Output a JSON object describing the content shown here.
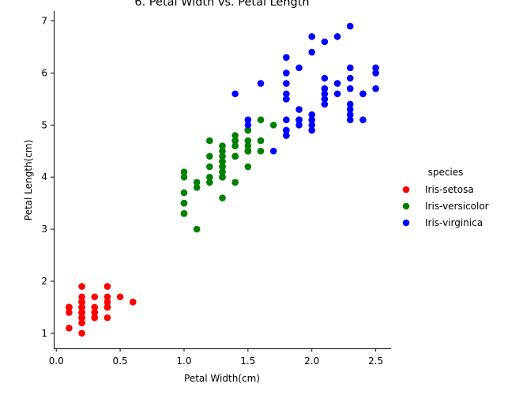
{
  "chart_data": {
    "type": "scatter",
    "title": "6. Petal Width vs. Petal Length",
    "xlabel": "Petal Width(cm)",
    "ylabel": "Petal Length(cm)",
    "xlim": [
      -0.02,
      2.62
    ],
    "ylim": [
      0.71,
      7.19
    ],
    "xticks": [
      0.0,
      0.5,
      1.0,
      1.5,
      2.0,
      2.5
    ],
    "xtick_labels": [
      "0.0",
      "0.5",
      "1.0",
      "1.5",
      "2.0",
      "2.5"
    ],
    "yticks": [
      1,
      2,
      3,
      4,
      5,
      6,
      7
    ],
    "ytick_labels": [
      "1",
      "2",
      "3",
      "4",
      "5",
      "6",
      "7"
    ],
    "grid": false,
    "legend": {
      "title": "species",
      "placement": "right"
    },
    "series": [
      {
        "name": "Iris-setosa",
        "color": "#ff0000",
        "points": [
          [
            0.2,
            1.4
          ],
          [
            0.2,
            1.4
          ],
          [
            0.2,
            1.3
          ],
          [
            0.2,
            1.5
          ],
          [
            0.2,
            1.4
          ],
          [
            0.4,
            1.7
          ],
          [
            0.3,
            1.4
          ],
          [
            0.2,
            1.5
          ],
          [
            0.2,
            1.4
          ],
          [
            0.1,
            1.5
          ],
          [
            0.2,
            1.5
          ],
          [
            0.2,
            1.6
          ],
          [
            0.1,
            1.4
          ],
          [
            0.1,
            1.1
          ],
          [
            0.2,
            1.2
          ],
          [
            0.4,
            1.5
          ],
          [
            0.4,
            1.3
          ],
          [
            0.3,
            1.4
          ],
          [
            0.3,
            1.7
          ],
          [
            0.3,
            1.5
          ],
          [
            0.2,
            1.7
          ],
          [
            0.4,
            1.5
          ],
          [
            0.2,
            1.0
          ],
          [
            0.5,
            1.7
          ],
          [
            0.2,
            1.9
          ],
          [
            0.2,
            1.6
          ],
          [
            0.4,
            1.6
          ],
          [
            0.2,
            1.5
          ],
          [
            0.2,
            1.4
          ],
          [
            0.2,
            1.6
          ],
          [
            0.2,
            1.6
          ],
          [
            0.4,
            1.5
          ],
          [
            0.1,
            1.5
          ],
          [
            0.2,
            1.4
          ],
          [
            0.1,
            1.5
          ],
          [
            0.2,
            1.2
          ],
          [
            0.2,
            1.3
          ],
          [
            0.1,
            1.5
          ],
          [
            0.2,
            1.3
          ],
          [
            0.2,
            1.5
          ],
          [
            0.3,
            1.3
          ],
          [
            0.3,
            1.3
          ],
          [
            0.2,
            1.3
          ],
          [
            0.6,
            1.6
          ],
          [
            0.4,
            1.9
          ],
          [
            0.3,
            1.4
          ],
          [
            0.2,
            1.6
          ],
          [
            0.2,
            1.4
          ],
          [
            0.2,
            1.5
          ],
          [
            0.2,
            1.4
          ]
        ]
      },
      {
        "name": "Iris-versicolor",
        "color": "#008000",
        "points": [
          [
            1.4,
            4.7
          ],
          [
            1.5,
            4.5
          ],
          [
            1.5,
            4.9
          ],
          [
            1.3,
            4.0
          ],
          [
            1.5,
            4.6
          ],
          [
            1.3,
            4.5
          ],
          [
            1.6,
            4.7
          ],
          [
            1.0,
            3.3
          ],
          [
            1.3,
            4.6
          ],
          [
            1.4,
            3.9
          ],
          [
            1.0,
            3.5
          ],
          [
            1.5,
            4.2
          ],
          [
            1.0,
            4.0
          ],
          [
            1.4,
            4.7
          ],
          [
            1.3,
            3.6
          ],
          [
            1.4,
            4.4
          ],
          [
            1.5,
            4.5
          ],
          [
            1.0,
            4.1
          ],
          [
            1.5,
            4.5
          ],
          [
            1.1,
            3.9
          ],
          [
            1.8,
            4.8
          ],
          [
            1.3,
            4.0
          ],
          [
            1.5,
            4.9
          ],
          [
            1.2,
            4.7
          ],
          [
            1.3,
            4.3
          ],
          [
            1.4,
            4.4
          ],
          [
            1.4,
            4.8
          ],
          [
            1.7,
            5.0
          ],
          [
            1.5,
            4.5
          ],
          [
            1.0,
            3.5
          ],
          [
            1.1,
            3.8
          ],
          [
            1.0,
            3.7
          ],
          [
            1.2,
            3.9
          ],
          [
            1.6,
            5.1
          ],
          [
            1.5,
            4.5
          ],
          [
            1.6,
            4.5
          ],
          [
            1.5,
            4.7
          ],
          [
            1.3,
            4.4
          ],
          [
            1.3,
            4.1
          ],
          [
            1.3,
            4.0
          ],
          [
            1.2,
            4.4
          ],
          [
            1.4,
            4.6
          ],
          [
            1.2,
            4.0
          ],
          [
            1.0,
            3.3
          ],
          [
            1.3,
            4.2
          ],
          [
            1.2,
            4.2
          ],
          [
            1.3,
            4.2
          ],
          [
            1.3,
            4.3
          ],
          [
            1.1,
            3.0
          ],
          [
            1.3,
            4.1
          ]
        ]
      },
      {
        "name": "Iris-virginica",
        "color": "#0000ff",
        "points": [
          [
            2.5,
            6.0
          ],
          [
            1.9,
            5.1
          ],
          [
            2.1,
            5.9
          ],
          [
            1.8,
            5.6
          ],
          [
            2.2,
            5.8
          ],
          [
            2.1,
            6.6
          ],
          [
            1.7,
            4.5
          ],
          [
            1.8,
            6.3
          ],
          [
            1.8,
            5.8
          ],
          [
            2.5,
            6.1
          ],
          [
            2.0,
            5.1
          ],
          [
            1.9,
            5.3
          ],
          [
            2.1,
            5.5
          ],
          [
            2.0,
            5.0
          ],
          [
            2.4,
            5.1
          ],
          [
            2.3,
            5.3
          ],
          [
            1.8,
            5.5
          ],
          [
            2.2,
            6.7
          ],
          [
            2.3,
            6.9
          ],
          [
            1.5,
            5.0
          ],
          [
            2.3,
            5.7
          ],
          [
            2.0,
            4.9
          ],
          [
            2.0,
            6.7
          ],
          [
            1.8,
            4.9
          ],
          [
            2.1,
            5.7
          ],
          [
            1.8,
            6.0
          ],
          [
            1.8,
            4.8
          ],
          [
            1.8,
            4.9
          ],
          [
            2.1,
            5.6
          ],
          [
            1.6,
            5.8
          ],
          [
            1.9,
            6.1
          ],
          [
            2.0,
            6.4
          ],
          [
            2.2,
            5.6
          ],
          [
            1.5,
            5.1
          ],
          [
            1.4,
            5.6
          ],
          [
            2.3,
            6.1
          ],
          [
            2.4,
            5.6
          ],
          [
            1.8,
            5.5
          ],
          [
            1.8,
            4.8
          ],
          [
            2.1,
            5.4
          ],
          [
            2.4,
            5.6
          ],
          [
            2.3,
            5.1
          ],
          [
            1.9,
            5.1
          ],
          [
            2.3,
            5.9
          ],
          [
            2.5,
            5.7
          ],
          [
            2.3,
            5.2
          ],
          [
            1.9,
            5.0
          ],
          [
            2.0,
            5.2
          ],
          [
            2.3,
            5.4
          ],
          [
            1.8,
            5.1
          ]
        ]
      }
    ]
  }
}
